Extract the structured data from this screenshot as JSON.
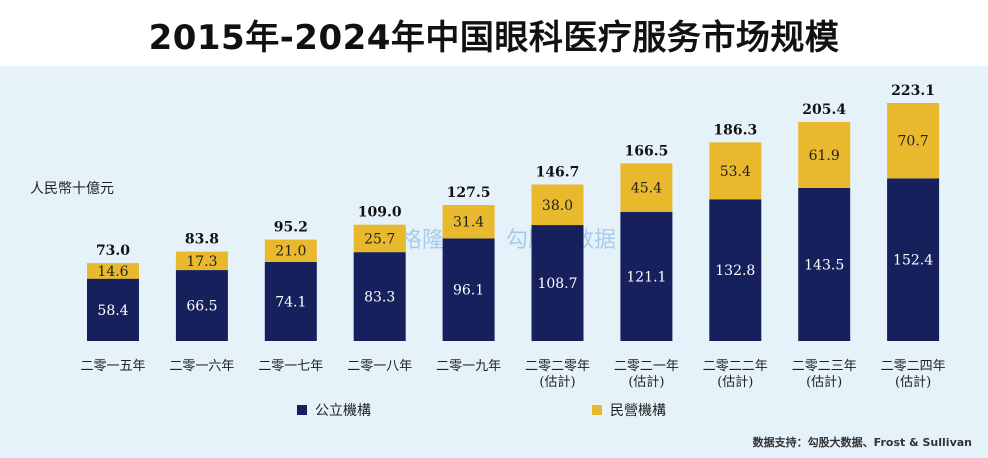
{
  "title": "2015年-2024年中国眼科医疗服务市场规模",
  "unit_label": "人民幣十億元",
  "legend": [
    {
      "label": "公立機構",
      "color": "#16205c"
    },
    {
      "label": "民營機構",
      "color": "#e8b92c"
    }
  ],
  "source": "数据支持：勾股大数据、Frost & Sullivan",
  "watermark": [
    "格隆汇",
    "勾股大数据"
  ],
  "chart_data": {
    "type": "bar",
    "stacked": true,
    "categories": [
      [
        "二零一五年"
      ],
      [
        "二零一六年"
      ],
      [
        "二零一七年"
      ],
      [
        "二零一八年"
      ],
      [
        "二零一九年"
      ],
      [
        "二零二零年",
        "(估計)"
      ],
      [
        "二零二一年",
        "(估計)"
      ],
      [
        "二零二二年",
        "(估計)"
      ],
      [
        "二零二三年",
        "(估計)"
      ],
      [
        "二零二四年",
        "(估計)"
      ]
    ],
    "series": [
      {
        "name": "公立機構",
        "color": "#16205c",
        "labelColor": "#ffffff",
        "values": [
          58.4,
          66.5,
          74.1,
          83.3,
          96.1,
          108.7,
          121.1,
          132.8,
          143.5,
          152.4
        ],
        "labels": [
          "58.4",
          "66.5",
          "74.1",
          "83.3",
          "96.1",
          "108.7",
          "121.1",
          "132.8",
          "143.5",
          "152.4"
        ]
      },
      {
        "name": "民營機構",
        "color": "#e8b92c",
        "labelColor": "#222222",
        "values": [
          14.6,
          17.3,
          21.0,
          25.7,
          31.4,
          38.0,
          45.4,
          53.4,
          61.9,
          70.7
        ],
        "labels": [
          "14.6",
          "17.3",
          "21.0",
          "25.7",
          "31.4",
          "38.0",
          "45.4",
          "53.4",
          "61.9",
          "70.7"
        ]
      }
    ],
    "totals": [
      "73.0",
      "83.8",
      "95.2",
      "109.0",
      "127.5",
      "146.7",
      "166.5",
      "186.3",
      "205.4",
      "223.1"
    ],
    "ylim": [
      0,
      223.1
    ],
    "grid": false,
    "legend_position": "bottom"
  }
}
